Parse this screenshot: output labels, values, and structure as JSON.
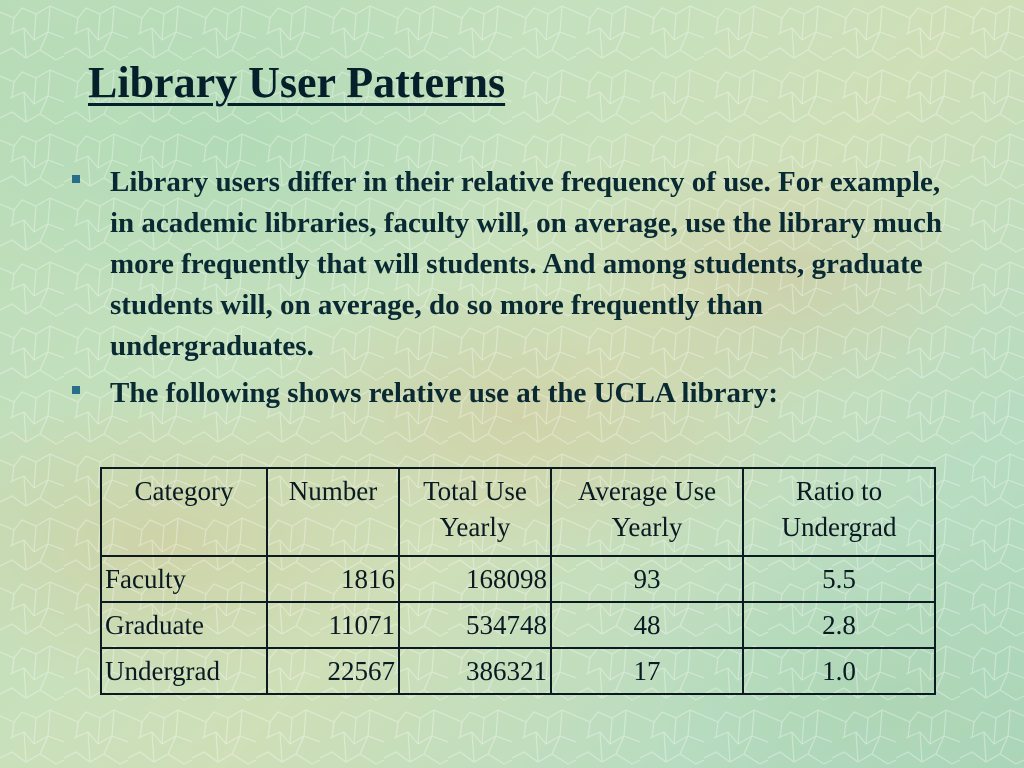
{
  "slide": {
    "title": "Library User Patterns",
    "bullets": [
      "Library users differ in their relative frequency of use. For example, in academic libraries, faculty will, on average, use the library much more frequently that will students. And among students, graduate students will, on average, do so more frequently than undergraduates.",
      "The following shows relative use at the UCLA library:"
    ]
  },
  "table": {
    "headers": [
      "Category",
      "Number",
      "Total Use Yearly",
      "Average Use Yearly",
      "Ratio to Undergrad"
    ],
    "rows": [
      [
        "Faculty",
        "1816",
        "168098",
        "93",
        "5.5"
      ],
      [
        "Graduate",
        "11071",
        "534748",
        "48",
        "2.8"
      ],
      [
        "Undergrad",
        "22567",
        "386321",
        "17",
        "1.0"
      ]
    ]
  },
  "colors": {
    "background": "#c2dfbc",
    "text": "#0a2a33",
    "bullet": "#2a6f8a",
    "table_border": "#0c1a22"
  },
  "icons": {
    "bullet": "square-bullet-icon"
  }
}
